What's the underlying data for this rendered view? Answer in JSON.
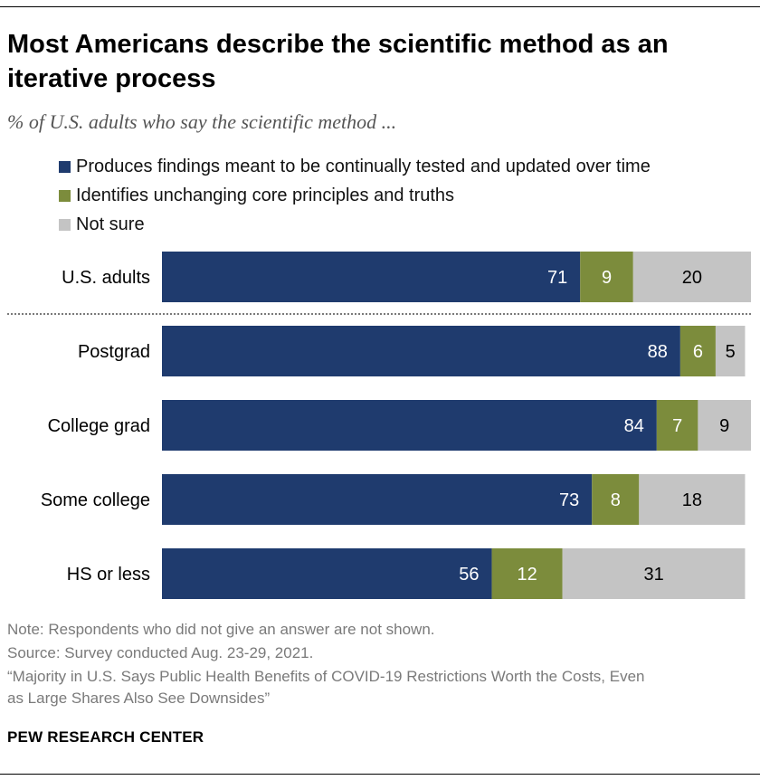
{
  "title": "Most Americans describe the scientific method as an iterative process",
  "subtitle": "% of U.S. adults who say the scientific method ...",
  "colors": {
    "tested": "#1f3b6e",
    "unchanging": "#7c8c3c",
    "not_sure": "#c4c4c4",
    "label_light": "#ffffff",
    "label_dark": "#000000"
  },
  "legend": [
    {
      "label": "Produces findings meant to be continually tested and updated over time",
      "color": "#1f3b6e"
    },
    {
      "label": "Identifies unchanging core principles and truths",
      "color": "#7c8c3c"
    },
    {
      "label": "Not sure",
      "color": "#c4c4c4"
    }
  ],
  "chart_data": {
    "type": "bar",
    "orientation": "horizontal",
    "stacked": true,
    "categories": [
      "U.S. adults",
      "Postgrad",
      "College grad",
      "Some college",
      "HS or less"
    ],
    "series": [
      {
        "name": "Produces findings meant to be continually tested and updated over time",
        "values": [
          71,
          88,
          84,
          73,
          56
        ]
      },
      {
        "name": "Identifies unchanging core principles and truths",
        "values": [
          9,
          6,
          7,
          8,
          12
        ]
      },
      {
        "name": "Not sure",
        "values": [
          20,
          5,
          9,
          18,
          31
        ]
      }
    ],
    "xlim": [
      0,
      100
    ],
    "grid": false,
    "separator_after": "U.S. adults"
  },
  "notes": {
    "note": "Note: Respondents who did not give an answer are not shown.",
    "source": "Source: Survey conducted Aug. 23-29, 2021.",
    "report_line1": "“Majority in U.S. Says Public Health Benefits of COVID-19 Restrictions Worth the Costs, Even",
    "report_line2": "as Large Shares Also See Downsides”"
  },
  "logo": "PEW RESEARCH CENTER"
}
